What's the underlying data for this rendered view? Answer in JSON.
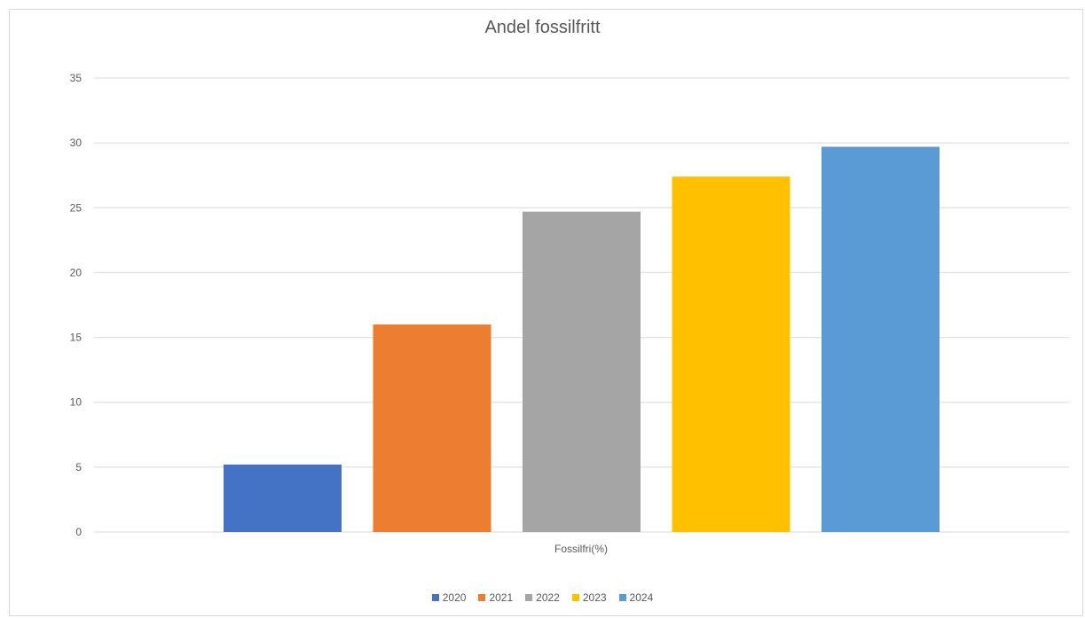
{
  "chart_data": {
    "type": "bar",
    "title": "Andel fossilfritt",
    "categories": [
      "Fossilfri(%)"
    ],
    "series": [
      {
        "name": "2020",
        "values": [
          5.2
        ],
        "color": "#4472c4"
      },
      {
        "name": "2021",
        "values": [
          16.0
        ],
        "color": "#ed7d31"
      },
      {
        "name": "2022",
        "values": [
          24.7
        ],
        "color": "#a5a5a5"
      },
      {
        "name": "2023",
        "values": [
          27.4
        ],
        "color": "#ffc000"
      },
      {
        "name": "2024",
        "values": [
          29.7
        ],
        "color": "#5b9bd5"
      }
    ],
    "ylim": [
      0,
      35
    ],
    "yticks": [
      "0",
      "5",
      "10",
      "15",
      "20",
      "25",
      "30",
      "35"
    ],
    "grid": true,
    "legend_position": "bottom"
  }
}
